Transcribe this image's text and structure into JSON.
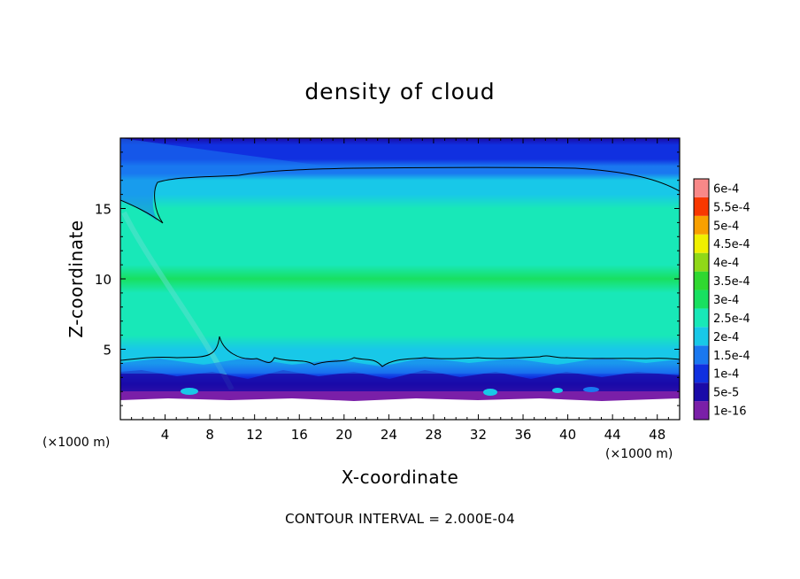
{
  "chart_data": {
    "type": "heatmap",
    "title": "density of cloud",
    "xlabel": "X-coordinate",
    "ylabel": "Z-coordinate",
    "x_unit_label": "(×1000 m)",
    "x_unit_label_right": "(×1000 m)",
    "xlim": [
      0,
      50
    ],
    "ylim": [
      0,
      20
    ],
    "x_ticks": [
      4,
      8,
      12,
      16,
      20,
      24,
      28,
      32,
      36,
      40,
      44,
      48
    ],
    "y_ticks": [
      5,
      10,
      15
    ],
    "colorbar": {
      "labels": [
        "1e-16",
        "5e-5",
        "1e-4",
        "1.5e-4",
        "2e-4",
        "2.5e-4",
        "3e-4",
        "3.5e-4",
        "4e-4",
        "4.5e-4",
        "5e-4",
        "5.5e-4",
        "6e-4"
      ],
      "colors": [
        "#7a1fa8",
        "#1a0aa8",
        "#1030e0",
        "#1a78f0",
        "#18c8e8",
        "#18e8b8",
        "#18e060",
        "#30d830",
        "#90d818",
        "#f0f000",
        "#f8a000",
        "#f83800",
        "#f88888"
      ]
    },
    "field_profile": {
      "z": [
        1.5,
        2.0,
        2.5,
        3.0,
        3.5,
        4.0,
        4.5,
        5.0,
        6.0,
        7.0,
        8.0,
        9.0,
        10.0,
        11.0,
        12.0,
        13.0,
        14.0,
        15.0,
        16.0,
        16.5,
        17.0,
        17.5,
        18.0,
        18.5,
        19.0,
        19.5,
        20.0
      ],
      "density": [
        0.0,
        4e-05,
        8e-05,
        0.00012,
        0.00016,
        0.0002,
        0.00022,
        0.00024,
        0.00026,
        0.000275,
        0.00029,
        0.000295,
        0.0003,
        0.000295,
        0.000285,
        0.000275,
        0.000262,
        0.00025,
        0.00023,
        0.00022,
        0.000205,
        0.00018,
        0.00016,
        0.00014,
        0.00012,
        0.0001,
        8e-05
      ]
    },
    "contour_level": 0.0002,
    "footnote": "CONTOUR INTERVAL = 2.000E-04"
  }
}
